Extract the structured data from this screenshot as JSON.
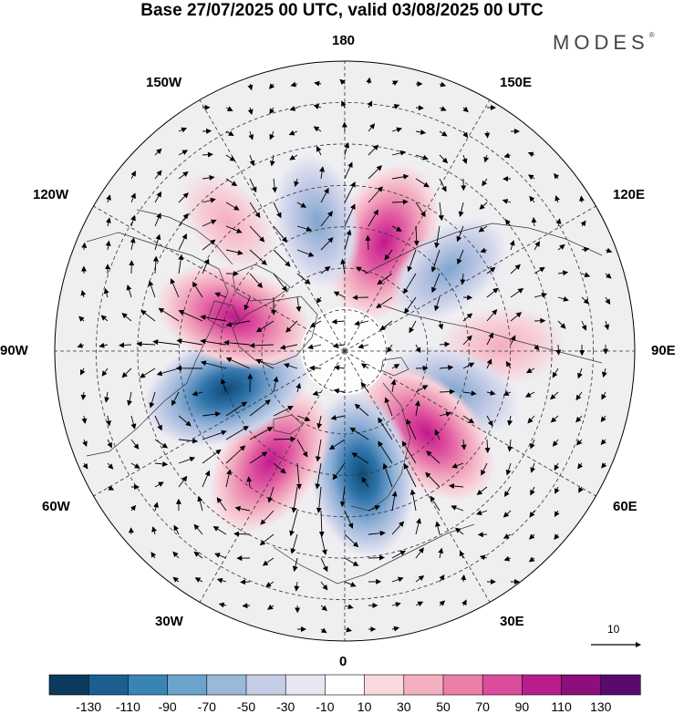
{
  "title": "Base 27/07/2025 00 UTC, valid 03/08/2025 00 UTC",
  "brand": "MODES",
  "brand_mark": "®",
  "longitude_labels": {
    "lon_180": "180",
    "lon_150e": "150E",
    "lon_120e": "120E",
    "lon_90e": "90E",
    "lon_60e": "60E",
    "lon_30e": "30E",
    "lon_0": "0",
    "lon_30w": "30W",
    "lon_60w": "60W",
    "lon_90w": "90W",
    "lon_120w": "120W",
    "lon_150w": "150W"
  },
  "reference_vector": {
    "label": "10"
  },
  "colorbar": {
    "labels": [
      "-130",
      "-110",
      "-90",
      "-70",
      "-50",
      "-30",
      "-10",
      "10",
      "30",
      "50",
      "70",
      "90",
      "110",
      "130"
    ],
    "colors": [
      "#0c3a5c",
      "#1a5f8f",
      "#3a84b5",
      "#6aa3cc",
      "#9bb8da",
      "#c6cde6",
      "#e8e6f2",
      "#ffffff",
      "#f9d9de",
      "#f4b0c1",
      "#ec7fa8",
      "#dc4c9c",
      "#b81d8e",
      "#8c0f7c",
      "#5a0a6e"
    ],
    "negative_color": "#2f6fa6",
    "positive_color": "#d4338f",
    "negative_light": "#c3cbe4",
    "positive_light": "#f3b8c7"
  },
  "anomalies": [
    {
      "name": "lobe-pos-150e",
      "lon": 160,
      "lat": 62,
      "value": 100
    },
    {
      "name": "lobe-neg-130e",
      "lon": 128,
      "lat": 58,
      "value": -50
    },
    {
      "name": "lobe-pos-90e",
      "lon": 92,
      "lat": 52,
      "value": 45
    },
    {
      "name": "lobe-neg-70e",
      "lon": 70,
      "lat": 62,
      "value": -55
    },
    {
      "name": "lobe-pos-50e",
      "lon": 45,
      "lat": 62,
      "value": 100
    },
    {
      "name": "lobe-neg-10e",
      "lon": 8,
      "lat": 60,
      "value": -105
    },
    {
      "name": "lobe-pos-30w",
      "lon": -34,
      "lat": 58,
      "value": 95
    },
    {
      "name": "lobe-neg-70w",
      "lon": -72,
      "lat": 60,
      "value": -110
    },
    {
      "name": "lobe-pos-105w",
      "lon": -107,
      "lat": 62,
      "value": 95
    },
    {
      "name": "lobe-pos-140w",
      "lon": -138,
      "lat": 48,
      "value": 30
    },
    {
      "name": "lobe-neg-170w",
      "lon": -168,
      "lat": 58,
      "value": -55
    }
  ]
}
